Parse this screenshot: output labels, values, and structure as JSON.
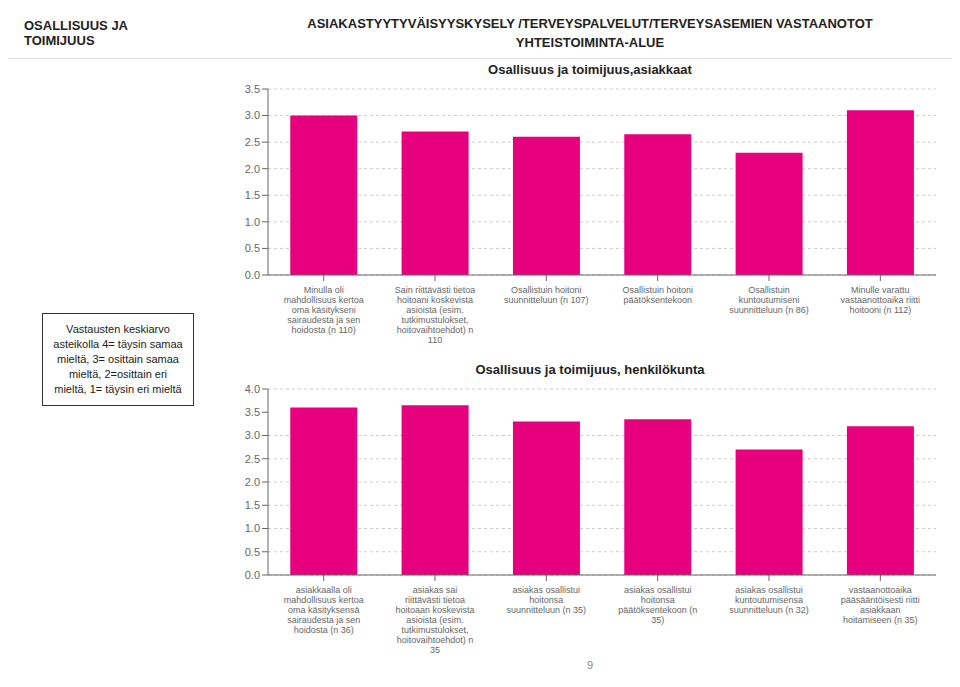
{
  "title": "ASIAKASTYYTYVÄISYYSKYSELY /TERVEYSPALVELUT/TERVEYSASEMIEN VASTAANOTOT",
  "subtitle": "YHTEISTOIMINTA-ALUE",
  "annotations": [
    "OSALLISUUS JA\nTOIMIJUUS",
    "Vastausten keskiarvo\nasteikolla 4= täysin samaa\nmieltä, 3= osittain samaa\nmieltä, 2=osittain eri\nmieltä, 1= täysin eri mieltä",
    "9"
  ],
  "chart_data": [
    {
      "type": "bar",
      "title": "Osallisuus ja toimijuus,asiakkaat",
      "categories": [
        "Minulla oli\nmahdollisuus kertoa\noma käsitykseni\nsairaudesta ja sen\nhoidosta (n 110)",
        "Sain riittävästi tietoa\nhoitoani koskevista\nasioista (esim.\ntutkimustulokset,\nhoitovaihtoehdot) n\n110",
        "Osallistuin hoitoni\nsuunnitteluun (n 107)",
        "Osallistuin hoitoni\npäätöksentekoon",
        "Osallistuin\nkuntoutumiseni\nsuunnitteluun (n 86)",
        "Minulle varattu\nvastaanottoaika riitti\nhoitooni (n 112)"
      ],
      "values": [
        3.0,
        2.7,
        2.6,
        2.65,
        2.3,
        3.1
      ],
      "color": "#E6007E",
      "ylim": [
        0,
        3.5
      ],
      "yticks": [
        {
          "value": 0,
          "label": "0.0"
        },
        0.5,
        {
          "value": 1,
          "label": "1.0"
        },
        1.5,
        {
          "value": 2,
          "label": "2.0"
        },
        2.5,
        {
          "value": 3,
          "label": "3.0"
        },
        3.5
      ],
      "grid": true
    },
    {
      "type": "bar",
      "title": "Osallisuus ja toimijuus, henkilökunta",
      "categories": [
        "asiakkaalla oli\nmahdollisuus kertoa\noma käsityksensä\nsairaudesta ja sen\nhoidosta (n 36)",
        "asiakas sai\nriittävästi tietoa\nhoitoaan koskevista\nasioista (esim.\ntutkimustulokset,\nhoitovaihtoehdot) n\n35",
        "asiakas osallistui\nhoitonsa\nsuunnitteluun (n 35)",
        "asiakas osallistui\nhoitonsa\npäätöksentekoon (n\n35)",
        "asiakas osallistui\nkuntoutumisensa\nsuunnitteluun (n 32)",
        "vastaanottoaika\npääsääntöisesti riitti\nasiakkaan\nhoitamiseen (n 35)"
      ],
      "values": [
        3.6,
        3.65,
        3.3,
        3.35,
        2.7,
        3.2
      ],
      "color": "#E6007E",
      "ylim": [
        0,
        4.0
      ],
      "yticks": [
        {
          "value": 0,
          "label": "0.0"
        },
        0.5,
        {
          "value": 1,
          "label": "1.0"
        },
        1.5,
        {
          "value": 2,
          "label": "2.0"
        },
        2.5,
        {
          "value": 3,
          "label": "3.0"
        },
        3.5,
        {
          "value": 4,
          "label": "4.0"
        }
      ],
      "grid": true
    }
  ]
}
